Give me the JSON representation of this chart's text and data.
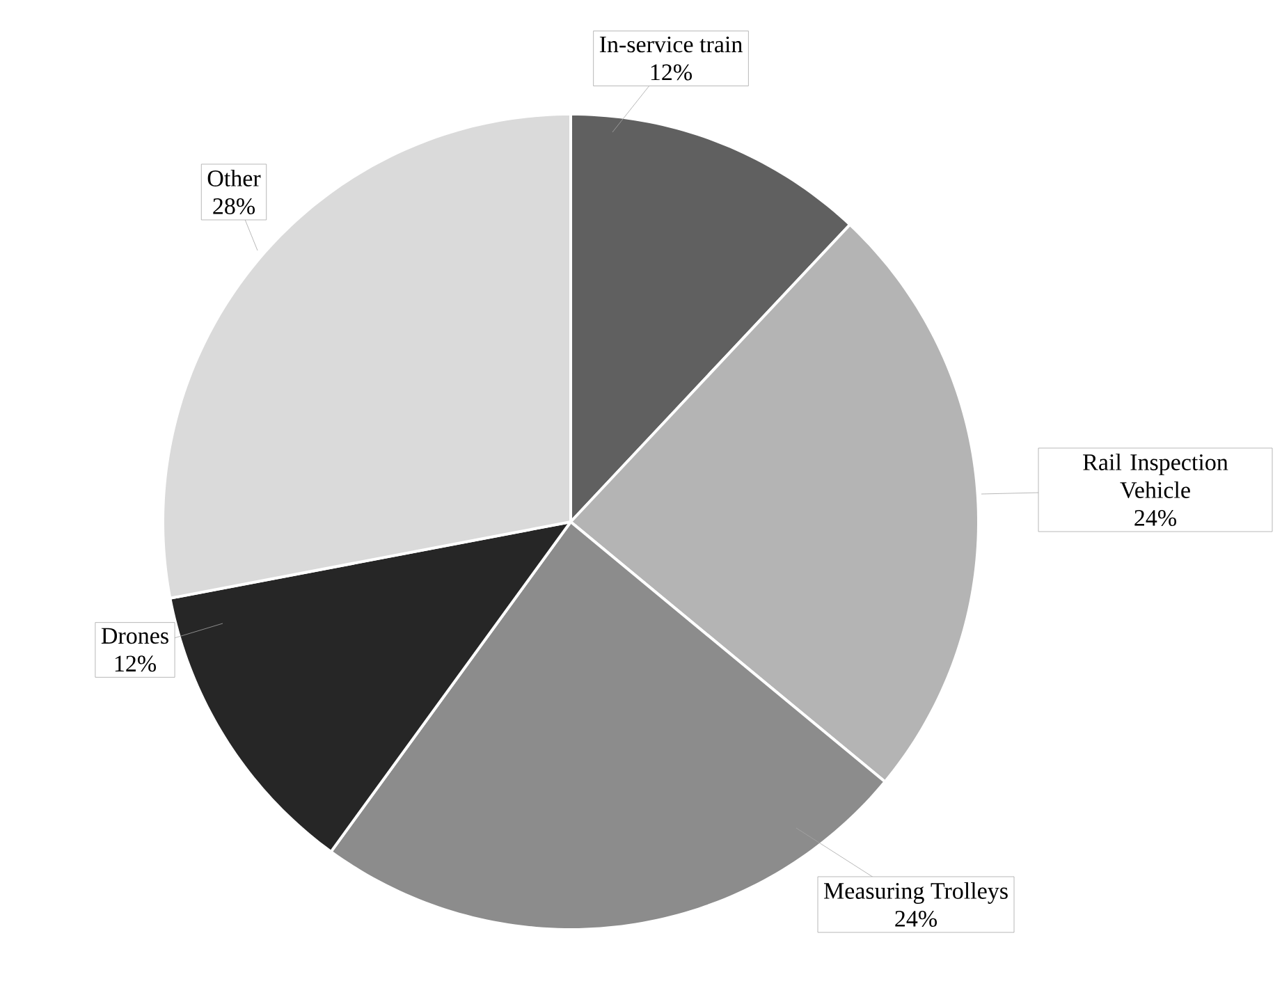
{
  "chart_data": {
    "type": "pie",
    "categories": [
      "In-service train",
      "Rail Inspection Vehicle",
      "Measuring Trolleys",
      "Drones",
      "Other"
    ],
    "values": [
      12,
      24,
      24,
      12,
      28
    ],
    "value_labels": [
      "12%",
      "24%",
      "24%",
      "12%",
      "28%"
    ],
    "colors": [
      "#606060",
      "#b4b4b4",
      "#8c8c8c",
      "#262626",
      "#dadada"
    ]
  }
}
